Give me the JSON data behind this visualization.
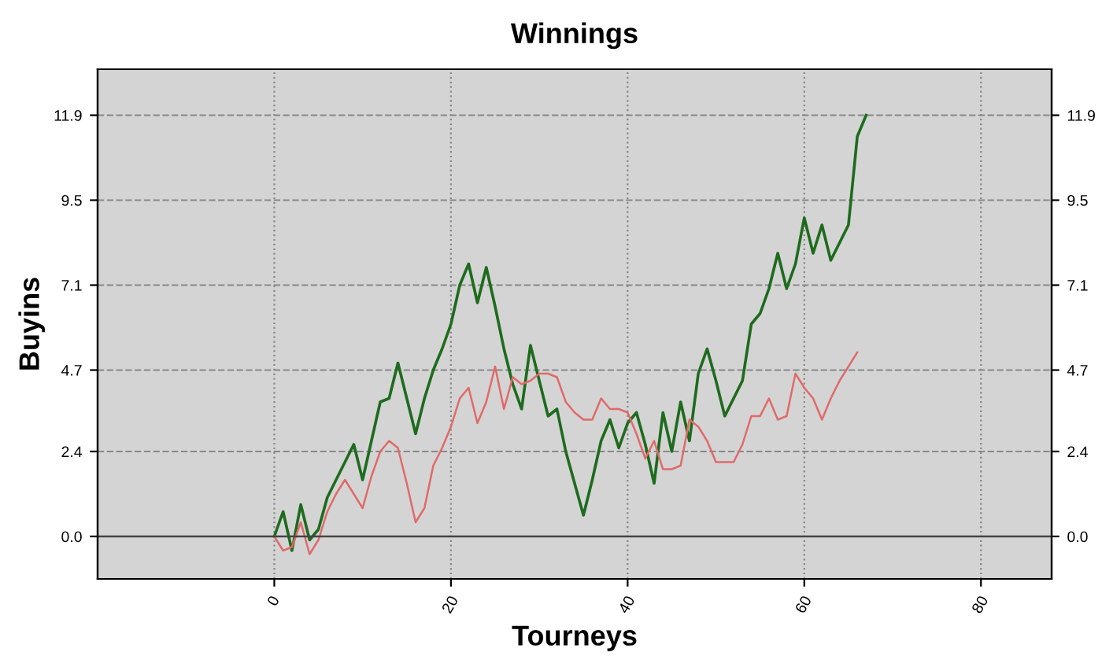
{
  "chart_data": {
    "type": "line",
    "title": "Winnings",
    "xlabel": "Tourneys",
    "ylabel": "Buyins",
    "x": [
      0,
      1,
      2,
      3,
      4,
      5,
      6,
      7,
      8,
      9,
      10,
      11,
      12,
      13,
      14,
      15,
      16,
      17,
      18,
      19,
      20,
      21,
      22,
      23,
      24,
      25,
      26,
      27,
      28,
      29,
      30,
      31,
      32,
      33,
      34,
      35,
      36,
      37,
      38,
      39,
      40,
      41,
      42,
      43,
      44,
      45,
      46,
      47,
      48,
      49,
      50,
      51,
      52,
      53,
      54,
      55,
      56,
      57,
      58,
      59,
      60,
      61,
      62,
      63,
      64,
      65,
      66,
      67
    ],
    "series": [
      {
        "color": "#1e6b1e",
        "values": [
          0,
          0.7,
          -0.4,
          0.9,
          -0.1,
          0.2,
          1.1,
          1.6,
          2.1,
          2.6,
          1.6,
          2.7,
          3.8,
          3.9,
          4.9,
          3.9,
          2.9,
          3.9,
          4.7,
          5.3,
          6.0,
          7.1,
          7.7,
          6.6,
          7.6,
          6.5,
          5.3,
          4.3,
          3.6,
          5.4,
          4.4,
          3.4,
          3.6,
          2.4,
          1.5,
          0.6,
          1.6,
          2.7,
          3.3,
          2.5,
          3.2,
          3.5,
          2.6,
          1.5,
          3.5,
          2.4,
          3.8,
          2.7,
          4.6,
          5.3,
          4.4,
          3.4,
          3.9,
          4.4,
          6.0,
          6.3,
          7.0,
          8.0,
          7.0,
          7.7,
          9.0,
          8.0,
          8.8,
          7.8,
          8.3,
          8.8,
          11.3,
          11.9
        ]
      },
      {
        "color": "#e06a6a",
        "values": [
          0,
          -0.4,
          -0.3,
          0.4,
          -0.5,
          -0.1,
          0.7,
          1.2,
          1.6,
          1.2,
          0.8,
          1.7,
          2.4,
          2.7,
          2.5,
          1.5,
          0.4,
          0.8,
          2.0,
          2.5,
          3.1,
          3.9,
          4.2,
          3.2,
          3.8,
          4.8,
          3.6,
          4.5,
          4.3,
          4.4,
          4.6,
          4.6,
          4.5,
          3.8,
          3.5,
          3.3,
          3.3,
          3.9,
          3.6,
          3.6,
          3.5,
          2.9,
          2.2,
          2.7,
          1.9,
          1.9,
          2.0,
          3.3,
          3.1,
          2.7,
          2.1,
          2.1,
          2.1,
          2.6,
          3.4,
          3.4,
          3.9,
          3.3,
          3.4,
          4.6,
          4.2,
          3.9,
          3.3,
          3.9,
          4.4,
          4.8,
          5.2,
          null
        ]
      }
    ],
    "xlim": [
      -20,
      88
    ],
    "xticks": [
      0,
      20,
      40,
      60,
      80
    ],
    "ylim": [
      -1.2,
      13.2
    ],
    "yticks": [
      {
        "value": 0,
        "label": "0.0"
      },
      2.4,
      4.7,
      7.1,
      9.5,
      11.9
    ],
    "y2lim": [
      -1.2,
      13.2
    ],
    "y2ticks": [
      {
        "value": 0,
        "label": "0.0"
      },
      2.4,
      4.7,
      7.1,
      9.5,
      11.9
    ],
    "ref_lines": [
      {
        "axis": "y",
        "value": 0,
        "color": "#444444",
        "line_style": "solid"
      }
    ],
    "grid": true,
    "legend": false,
    "marker": "none",
    "line_style": "solid"
  }
}
